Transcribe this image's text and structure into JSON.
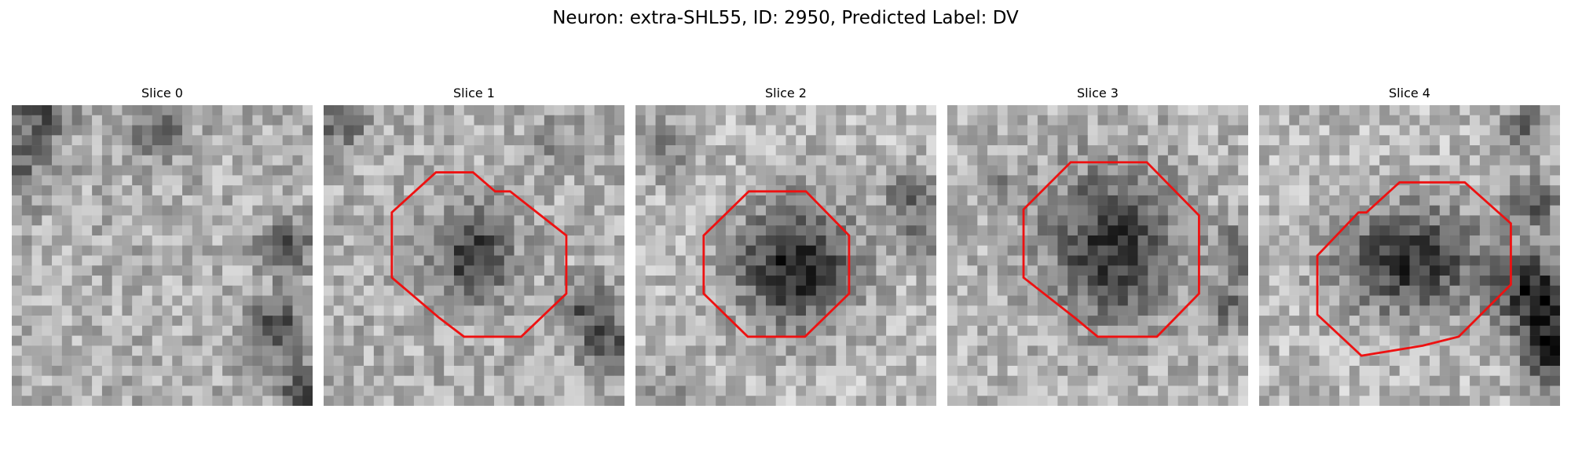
{
  "figure": {
    "title": "Neuron: extra-SHL55, ID: 2950, Predicted Label: DV",
    "contour_color": "#ee1111"
  },
  "slices": [
    {
      "title": "Slice 0",
      "has_contour": false
    },
    {
      "title": "Slice 1",
      "has_contour": true
    },
    {
      "title": "Slice 2",
      "has_contour": true
    },
    {
      "title": "Slice 3",
      "has_contour": true
    },
    {
      "title": "Slice 4",
      "has_contour": true
    }
  ]
}
